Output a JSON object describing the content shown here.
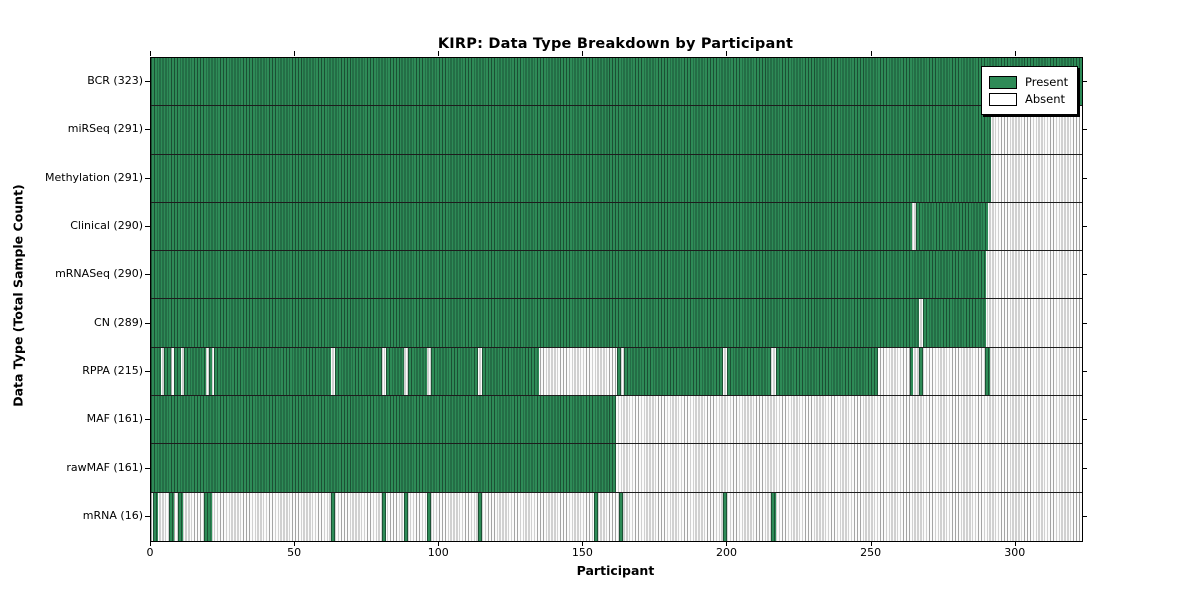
{
  "chart_data": {
    "type": "heatmap",
    "title": "KIRP: Data Type Breakdown by Participant",
    "xlabel": "Participant",
    "ylabel": "Data Type (Total Sample Count)",
    "n_participants": 323,
    "x_ticks": [
      0,
      50,
      100,
      150,
      200,
      250,
      300
    ],
    "grid": false,
    "legend_position": "upper-right",
    "legend": [
      {
        "label": "Present",
        "color": "#2e8b57"
      },
      {
        "label": "Absent",
        "color": "#ffffff"
      }
    ],
    "colors": {
      "present_fill": "#2e8b57",
      "present_edge": "#1b5134",
      "absent_fill": "#fbfbfb",
      "absent_edge": "#a4a4a4"
    },
    "rows": [
      {
        "label": "BCR (323)",
        "name": "BCR",
        "total": 323,
        "present_segments": [
          [
            0,
            323
          ]
        ]
      },
      {
        "label": "miRSeq (291)",
        "name": "miRSeq",
        "total": 291,
        "present_segments": [
          [
            0,
            291.3
          ]
        ]
      },
      {
        "label": "Methylation (291)",
        "name": "Methylation",
        "total": 291,
        "present_segments": [
          [
            0,
            291.3
          ]
        ]
      },
      {
        "label": "Clinical (290)",
        "name": "Clinical",
        "total": 290,
        "present_segments": [
          [
            0,
            263.9
          ],
          [
            265.4,
            290.5
          ]
        ]
      },
      {
        "label": "mRNASeq (290)",
        "name": "mRNASeq",
        "total": 290,
        "present_segments": [
          [
            0,
            289.7
          ]
        ]
      },
      {
        "label": "CN (289)",
        "name": "CN",
        "total": 289,
        "present_segments": [
          [
            0,
            266.5
          ],
          [
            268,
            289.8
          ]
        ]
      },
      {
        "label": "RPPA (215)",
        "name": "RPPA",
        "total": 215,
        "present_segments": [
          [
            0,
            3.5
          ],
          [
            4.5,
            7
          ],
          [
            8,
            10.5
          ],
          [
            11.5,
            19.2
          ],
          [
            20.2,
            21
          ],
          [
            22,
            62.3
          ],
          [
            63.7,
            80.3
          ],
          [
            81.7,
            87.8
          ],
          [
            89.2,
            95.9
          ],
          [
            97.3,
            113.5
          ],
          [
            115,
            134.7
          ],
          [
            161.8,
            163
          ],
          [
            164.2,
            198.5
          ],
          [
            200,
            215.2
          ],
          [
            216.7,
            252.2
          ],
          [
            263.3,
            264.5
          ],
          [
            266.4,
            267.8
          ],
          [
            289.3,
            291
          ]
        ]
      },
      {
        "label": "MAF (161)",
        "name": "MAF",
        "total": 161,
        "present_segments": [
          [
            0,
            161.3
          ]
        ]
      },
      {
        "label": "rawMAF (161)",
        "name": "rawMAF",
        "total": 161,
        "present_segments": [
          [
            0,
            161.3
          ]
        ]
      },
      {
        "label": "mRNA (16)",
        "name": "mRNA",
        "total": 16,
        "present_segments": [
          [
            0.8,
            2.3
          ],
          [
            6.2,
            8
          ],
          [
            9.3,
            11
          ],
          [
            18.5,
            21
          ],
          [
            62.3,
            63.7
          ],
          [
            80.3,
            81.7
          ],
          [
            87.8,
            89.2
          ],
          [
            95.9,
            97.3
          ],
          [
            113.5,
            115
          ],
          [
            153.6,
            155
          ],
          [
            162.3,
            163.7
          ],
          [
            198.5,
            200
          ],
          [
            215.2,
            216.7
          ]
        ]
      }
    ]
  }
}
